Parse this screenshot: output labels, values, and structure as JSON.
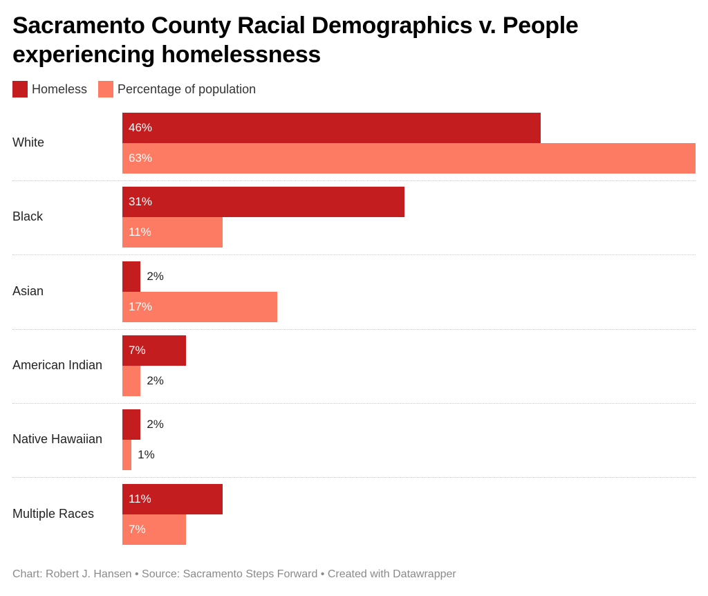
{
  "title": "Sacramento County Racial Demographics v. People experiencing homelessness",
  "footer": "Chart: Robert J. Hansen • Source: Sacramento Steps Forward • Created with Datawrapper",
  "colors": {
    "homeless": "#c41d1f",
    "population": "#fd7b63"
  },
  "chart_data": {
    "type": "bar",
    "orientation": "horizontal",
    "title": "Sacramento County Racial Demographics v. People experiencing homelessness",
    "xlabel": "",
    "ylabel": "",
    "xlim": [
      0,
      63
    ],
    "grid": false,
    "legend_position": "top-left",
    "value_suffix": "%",
    "categories": [
      "White",
      "Black",
      "Asian",
      "American Indian",
      "Native Hawaiian",
      "Multiple Races"
    ],
    "series": [
      {
        "name": "Homeless",
        "color": "#c41d1f",
        "values": [
          46,
          31,
          2,
          7,
          2,
          11
        ]
      },
      {
        "name": "Percentage of population",
        "color": "#fd7b63",
        "values": [
          63,
          11,
          17,
          2,
          1,
          7
        ]
      }
    ]
  }
}
